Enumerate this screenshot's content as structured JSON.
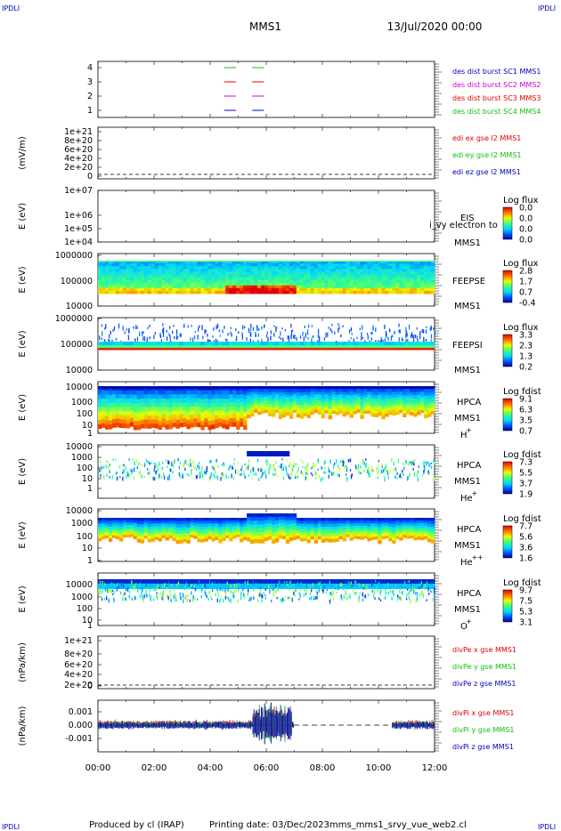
{
  "corner_marks": {
    "tl": "IPDLI",
    "tr": "IPDLI",
    "bl": "IPDLI",
    "br": "IPDLI"
  },
  "header": {
    "spacecraft": "MMS1",
    "date": "13/Jul/2020 00:00"
  },
  "footer": {
    "produced_by": "Produced by cl (IRAP)",
    "printing_date": "Printing date: 03/Dec/2023",
    "file": "mms_mms1_srvy_vue_web2.cl"
  },
  "colors": {
    "red": "#e00000",
    "green": "#10c010",
    "blue": "#0000c0",
    "magenta": "#d000d0"
  },
  "chart_data": {
    "type": "line",
    "x_ticks": [
      "00:00",
      "02:00",
      "04:00",
      "06:00",
      "08:00",
      "10:00",
      "12:00"
    ],
    "xlim": [
      "00:00",
      "12:00"
    ],
    "panels": [
      {
        "id": "burst",
        "type": "line",
        "yticks": [
          "4",
          "3",
          "2",
          "1"
        ],
        "series": [
          {
            "name": "des dist burst SC1 MMS1",
            "color": "#0000c0",
            "y": 1,
            "segments": [
              [
                "04:30",
                "04:55"
              ],
              [
                "05:30",
                "05:55"
              ]
            ]
          },
          {
            "name": "des dist burst SC2 MMS2",
            "color": "#d000d0",
            "y": 2,
            "segments": [
              [
                "04:30",
                "04:55"
              ],
              [
                "05:30",
                "05:55"
              ]
            ]
          },
          {
            "name": "des dist burst SC3 MMS3",
            "color": "#e00000",
            "y": 3,
            "segments": [
              [
                "04:30",
                "04:55"
              ],
              [
                "05:30",
                "05:55"
              ]
            ]
          },
          {
            "name": "des dist burst SC4 MMS4",
            "color": "#10c010",
            "y": 4,
            "segments": [
              [
                "04:30",
                "04:55"
              ],
              [
                "05:30",
                "05:55"
              ]
            ]
          }
        ]
      },
      {
        "id": "edi",
        "type": "line",
        "ylabel": "(mV/m)",
        "yticks": [
          "1e+21",
          "8e+20",
          "6e+20",
          "4e+20",
          "2e+20",
          "0"
        ],
        "series": [
          {
            "name": "edi ex gse l2 MMS1",
            "color": "#e00000"
          },
          {
            "name": "edi ey gse l2 MMS1",
            "color": "#10c010"
          },
          {
            "name": "edi ez gse l2 MMS1",
            "color": "#0000c0"
          }
        ]
      },
      {
        "id": "eis",
        "type": "heatmap",
        "ylabel": "E (eV)",
        "yticks": [
          "1e+07",
          "1e+06",
          "1e+05",
          "1e+04"
        ],
        "instrument": "EIS",
        "probe": "MMS1",
        "overflow_text": "i_vy electron to",
        "colorbar": {
          "title": "Log flux",
          "ticks": [
            "0.0",
            "0.0",
            "0.0",
            "0.0"
          ]
        }
      },
      {
        "id": "feeps_e",
        "type": "heatmap",
        "ylabel": "E (eV)",
        "yticks": [
          "1000000",
          "100000",
          "10000"
        ],
        "instrument": "FEEPSE",
        "probe": "MMS1",
        "colorbar": {
          "title": "Log flux",
          "ticks": [
            "2.8",
            "1.7",
            "0.7",
            "-0.4"
          ]
        }
      },
      {
        "id": "feeps_i",
        "type": "heatmap",
        "ylabel": "E (eV)",
        "yticks": [
          "1000000",
          "100000",
          "10000"
        ],
        "instrument": "FEEPSI",
        "probe": "MMS1",
        "colorbar": {
          "title": "Log flux",
          "ticks": [
            "3.3",
            "2.3",
            "1.3",
            "0.2"
          ]
        }
      },
      {
        "id": "hpca_h",
        "type": "heatmap",
        "ylabel": "E (eV)",
        "yticks": [
          "10000",
          "1000",
          "100",
          "10",
          "1"
        ],
        "instrument": "HPCA",
        "probe": "MMS1",
        "species": "H",
        "charge": "+",
        "colorbar": {
          "title": "Log fdist",
          "ticks": [
            "9.1",
            "6.3",
            "3.5",
            "0.7"
          ]
        }
      },
      {
        "id": "hpca_he",
        "type": "heatmap",
        "ylabel": "E (eV)",
        "yticks": [
          "10000",
          "1000",
          "100",
          "10",
          "1"
        ],
        "instrument": "HPCA",
        "probe": "MMS1",
        "species": "He",
        "charge": "+",
        "colorbar": {
          "title": "Log fdist",
          "ticks": [
            "7.3",
            "5.5",
            "3.7",
            "1.9"
          ]
        }
      },
      {
        "id": "hpca_hepp",
        "type": "heatmap",
        "ylabel": "E (eV)",
        "yticks": [
          "10000",
          "1000",
          "100",
          "10",
          "1"
        ],
        "instrument": "HPCA",
        "probe": "MMS1",
        "species": "He",
        "charge": "++",
        "colorbar": {
          "title": "Log fdist",
          "ticks": [
            "7.7",
            "5.6",
            "3.6",
            "1.6"
          ]
        }
      },
      {
        "id": "hpca_o",
        "type": "heatmap",
        "ylabel": "E (eV)",
        "yticks": [
          "10000",
          "1000",
          "100",
          "10",
          "1"
        ],
        "instrument": "HPCA",
        "probe": "MMS1",
        "species": "O",
        "charge": "+",
        "colorbar": {
          "title": "Log fdist",
          "ticks": [
            "9.7",
            "7.5",
            "5.3",
            "3.1"
          ]
        }
      },
      {
        "id": "divpe",
        "type": "line",
        "ylabel": "(nPa/km)",
        "yticks": [
          "1e+21",
          "8e+20",
          "6e+20",
          "4e+20",
          "2e+20",
          "0"
        ],
        "series": [
          {
            "name": "divPe x gse MMS1",
            "color": "#e00000"
          },
          {
            "name": "divPe y gse MMS1",
            "color": "#10c010"
          },
          {
            "name": "divPe z gse MMS1",
            "color": "#0000c0"
          }
        ]
      },
      {
        "id": "divpi",
        "type": "line",
        "ylabel": "(nPa/km)",
        "yticks": [
          "0.001",
          "0.000",
          "-0.001"
        ],
        "data_intervals": [
          [
            "00:00",
            "07:00"
          ],
          [
            "10:30",
            "12:00"
          ]
        ],
        "series": [
          {
            "name": "divPi x gse MMS1",
            "color": "#e00000"
          },
          {
            "name": "divPi y gse MMS1",
            "color": "#10c010"
          },
          {
            "name": "divPi z gse MMS1",
            "color": "#0000c0"
          }
        ]
      }
    ]
  }
}
